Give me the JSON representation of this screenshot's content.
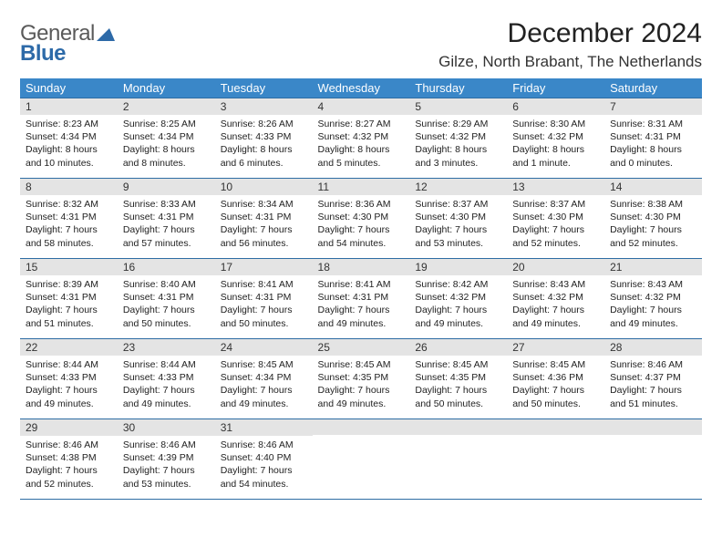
{
  "brand": {
    "line1": "General",
    "line2": "Blue"
  },
  "title": "December 2024",
  "location": "Gilze, North Brabant, The Netherlands",
  "colors": {
    "header_bg": "#3a87c8",
    "header_text": "#ffffff",
    "daynum_bg": "#e4e4e4",
    "row_border": "#2e6da4",
    "logo_gray": "#5a5a5a",
    "logo_blue": "#2d6aa8"
  },
  "weekdays": [
    "Sunday",
    "Monday",
    "Tuesday",
    "Wednesday",
    "Thursday",
    "Friday",
    "Saturday"
  ],
  "weeks": [
    [
      {
        "n": "1",
        "sr": "Sunrise: 8:23 AM",
        "ss": "Sunset: 4:34 PM",
        "d1": "Daylight: 8 hours",
        "d2": "and 10 minutes."
      },
      {
        "n": "2",
        "sr": "Sunrise: 8:25 AM",
        "ss": "Sunset: 4:34 PM",
        "d1": "Daylight: 8 hours",
        "d2": "and 8 minutes."
      },
      {
        "n": "3",
        "sr": "Sunrise: 8:26 AM",
        "ss": "Sunset: 4:33 PM",
        "d1": "Daylight: 8 hours",
        "d2": "and 6 minutes."
      },
      {
        "n": "4",
        "sr": "Sunrise: 8:27 AM",
        "ss": "Sunset: 4:32 PM",
        "d1": "Daylight: 8 hours",
        "d2": "and 5 minutes."
      },
      {
        "n": "5",
        "sr": "Sunrise: 8:29 AM",
        "ss": "Sunset: 4:32 PM",
        "d1": "Daylight: 8 hours",
        "d2": "and 3 minutes."
      },
      {
        "n": "6",
        "sr": "Sunrise: 8:30 AM",
        "ss": "Sunset: 4:32 PM",
        "d1": "Daylight: 8 hours",
        "d2": "and 1 minute."
      },
      {
        "n": "7",
        "sr": "Sunrise: 8:31 AM",
        "ss": "Sunset: 4:31 PM",
        "d1": "Daylight: 8 hours",
        "d2": "and 0 minutes."
      }
    ],
    [
      {
        "n": "8",
        "sr": "Sunrise: 8:32 AM",
        "ss": "Sunset: 4:31 PM",
        "d1": "Daylight: 7 hours",
        "d2": "and 58 minutes."
      },
      {
        "n": "9",
        "sr": "Sunrise: 8:33 AM",
        "ss": "Sunset: 4:31 PM",
        "d1": "Daylight: 7 hours",
        "d2": "and 57 minutes."
      },
      {
        "n": "10",
        "sr": "Sunrise: 8:34 AM",
        "ss": "Sunset: 4:31 PM",
        "d1": "Daylight: 7 hours",
        "d2": "and 56 minutes."
      },
      {
        "n": "11",
        "sr": "Sunrise: 8:36 AM",
        "ss": "Sunset: 4:30 PM",
        "d1": "Daylight: 7 hours",
        "d2": "and 54 minutes."
      },
      {
        "n": "12",
        "sr": "Sunrise: 8:37 AM",
        "ss": "Sunset: 4:30 PM",
        "d1": "Daylight: 7 hours",
        "d2": "and 53 minutes."
      },
      {
        "n": "13",
        "sr": "Sunrise: 8:37 AM",
        "ss": "Sunset: 4:30 PM",
        "d1": "Daylight: 7 hours",
        "d2": "and 52 minutes."
      },
      {
        "n": "14",
        "sr": "Sunrise: 8:38 AM",
        "ss": "Sunset: 4:30 PM",
        "d1": "Daylight: 7 hours",
        "d2": "and 52 minutes."
      }
    ],
    [
      {
        "n": "15",
        "sr": "Sunrise: 8:39 AM",
        "ss": "Sunset: 4:31 PM",
        "d1": "Daylight: 7 hours",
        "d2": "and 51 minutes."
      },
      {
        "n": "16",
        "sr": "Sunrise: 8:40 AM",
        "ss": "Sunset: 4:31 PM",
        "d1": "Daylight: 7 hours",
        "d2": "and 50 minutes."
      },
      {
        "n": "17",
        "sr": "Sunrise: 8:41 AM",
        "ss": "Sunset: 4:31 PM",
        "d1": "Daylight: 7 hours",
        "d2": "and 50 minutes."
      },
      {
        "n": "18",
        "sr": "Sunrise: 8:41 AM",
        "ss": "Sunset: 4:31 PM",
        "d1": "Daylight: 7 hours",
        "d2": "and 49 minutes."
      },
      {
        "n": "19",
        "sr": "Sunrise: 8:42 AM",
        "ss": "Sunset: 4:32 PM",
        "d1": "Daylight: 7 hours",
        "d2": "and 49 minutes."
      },
      {
        "n": "20",
        "sr": "Sunrise: 8:43 AM",
        "ss": "Sunset: 4:32 PM",
        "d1": "Daylight: 7 hours",
        "d2": "and 49 minutes."
      },
      {
        "n": "21",
        "sr": "Sunrise: 8:43 AM",
        "ss": "Sunset: 4:32 PM",
        "d1": "Daylight: 7 hours",
        "d2": "and 49 minutes."
      }
    ],
    [
      {
        "n": "22",
        "sr": "Sunrise: 8:44 AM",
        "ss": "Sunset: 4:33 PM",
        "d1": "Daylight: 7 hours",
        "d2": "and 49 minutes."
      },
      {
        "n": "23",
        "sr": "Sunrise: 8:44 AM",
        "ss": "Sunset: 4:33 PM",
        "d1": "Daylight: 7 hours",
        "d2": "and 49 minutes."
      },
      {
        "n": "24",
        "sr": "Sunrise: 8:45 AM",
        "ss": "Sunset: 4:34 PM",
        "d1": "Daylight: 7 hours",
        "d2": "and 49 minutes."
      },
      {
        "n": "25",
        "sr": "Sunrise: 8:45 AM",
        "ss": "Sunset: 4:35 PM",
        "d1": "Daylight: 7 hours",
        "d2": "and 49 minutes."
      },
      {
        "n": "26",
        "sr": "Sunrise: 8:45 AM",
        "ss": "Sunset: 4:35 PM",
        "d1": "Daylight: 7 hours",
        "d2": "and 50 minutes."
      },
      {
        "n": "27",
        "sr": "Sunrise: 8:45 AM",
        "ss": "Sunset: 4:36 PM",
        "d1": "Daylight: 7 hours",
        "d2": "and 50 minutes."
      },
      {
        "n": "28",
        "sr": "Sunrise: 8:46 AM",
        "ss": "Sunset: 4:37 PM",
        "d1": "Daylight: 7 hours",
        "d2": "and 51 minutes."
      }
    ],
    [
      {
        "n": "29",
        "sr": "Sunrise: 8:46 AM",
        "ss": "Sunset: 4:38 PM",
        "d1": "Daylight: 7 hours",
        "d2": "and 52 minutes."
      },
      {
        "n": "30",
        "sr": "Sunrise: 8:46 AM",
        "ss": "Sunset: 4:39 PM",
        "d1": "Daylight: 7 hours",
        "d2": "and 53 minutes."
      },
      {
        "n": "31",
        "sr": "Sunrise: 8:46 AM",
        "ss": "Sunset: 4:40 PM",
        "d1": "Daylight: 7 hours",
        "d2": "and 54 minutes."
      },
      {
        "n": "",
        "sr": "",
        "ss": "",
        "d1": "",
        "d2": ""
      },
      {
        "n": "",
        "sr": "",
        "ss": "",
        "d1": "",
        "d2": ""
      },
      {
        "n": "",
        "sr": "",
        "ss": "",
        "d1": "",
        "d2": ""
      },
      {
        "n": "",
        "sr": "",
        "ss": "",
        "d1": "",
        "d2": ""
      }
    ]
  ]
}
